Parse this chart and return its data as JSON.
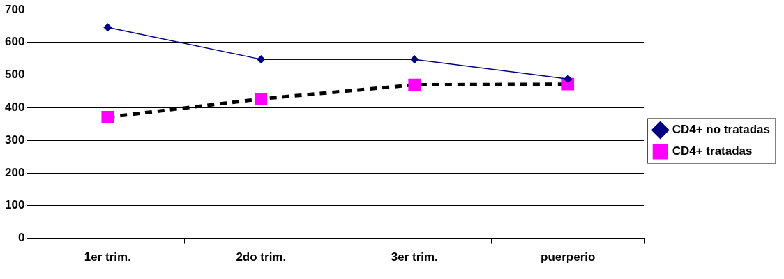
{
  "chart_data": {
    "type": "line",
    "categories": [
      "1er trim.",
      "2do trim.",
      "3er trim.",
      "puerperio"
    ],
    "series": [
      {
        "name": "CD4+ no tratadas",
        "color": "#000080",
        "marker": "diamond",
        "line_style": "solid",
        "values": [
          646,
          548,
          548,
          488
        ]
      },
      {
        "name": "CD4+ tratadas",
        "color": "#ff00ff",
        "marker": "square",
        "line_style": "dashed",
        "values": [
          371,
          427,
          470,
          472
        ]
      }
    ],
    "ylim": [
      0,
      700
    ],
    "yticks": [
      0,
      100,
      200,
      300,
      400,
      500,
      600,
      700
    ],
    "grid": "y",
    "legend": "right"
  }
}
